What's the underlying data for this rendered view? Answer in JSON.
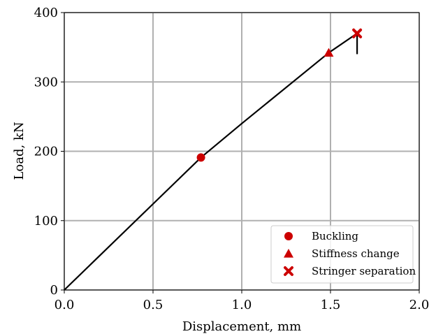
{
  "chart_data": {
    "type": "line",
    "xlabel": "Displacement, mm",
    "ylabel": "Load, kN",
    "xlim": [
      0.0,
      2.0
    ],
    "ylim": [
      0,
      400
    ],
    "xticks": [
      "0.0",
      "0.5",
      "1.0",
      "1.5",
      "2.0"
    ],
    "yticks": [
      "0",
      "100",
      "200",
      "300",
      "400"
    ],
    "grid": true,
    "legend_position": "lower-right",
    "curve": {
      "color": "#000000",
      "points": [
        [
          0.0,
          0
        ],
        [
          0.77,
          191
        ],
        [
          1.0,
          240
        ],
        [
          1.49,
          342
        ],
        [
          1.65,
          370
        ],
        [
          1.65,
          340
        ]
      ]
    },
    "markers": [
      {
        "name": "Buckling",
        "shape": "circle",
        "x": 0.77,
        "y": 191,
        "color": "#cc0000"
      },
      {
        "name": "Stiffness change",
        "shape": "triangle",
        "x": 1.49,
        "y": 342,
        "color": "#cc0000"
      },
      {
        "name": "Stringer separation",
        "shape": "x",
        "x": 1.65,
        "y": 370,
        "color": "#cc0000"
      }
    ]
  }
}
